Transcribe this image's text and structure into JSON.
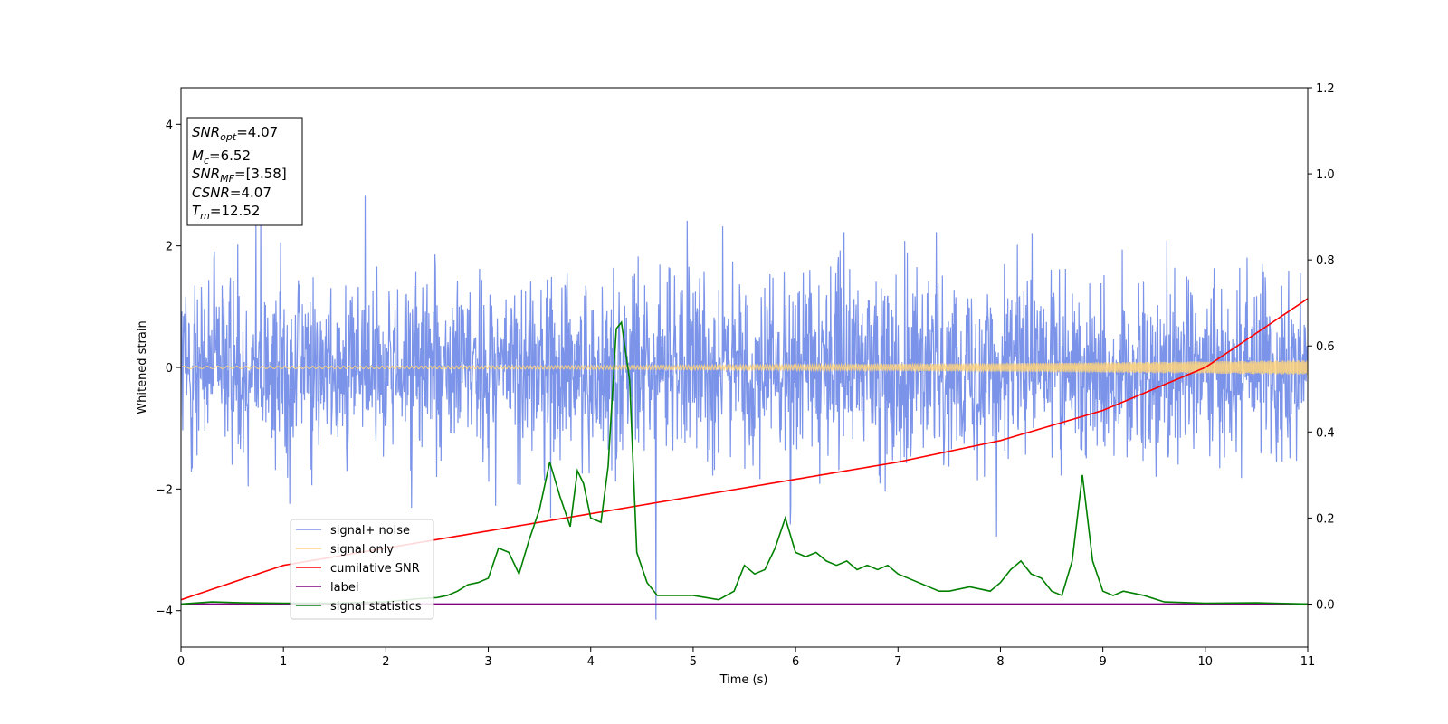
{
  "chart_data": {
    "type": "line",
    "xlabel": "Time (s)",
    "ylabel": "Whitened strain",
    "xlim": [
      0,
      11
    ],
    "ylim": [
      -4.6,
      4.6
    ],
    "y2lim": [
      -0.1,
      1.2
    ],
    "x_ticks": [
      "0",
      "1",
      "2",
      "3",
      "4",
      "5",
      "6",
      "7",
      "8",
      "9",
      "10",
      "11"
    ],
    "y_ticks": [
      "4",
      "2",
      "0",
      "−2",
      "−4"
    ],
    "y2_ticks": [
      "1.2",
      "1.0",
      "0.8",
      "0.6",
      "0.4",
      "0.2",
      "0.0"
    ],
    "grid": false,
    "legend_position": "lower-left",
    "info_box": {
      "snr_opt": {
        "main": "SNR",
        "sub": "opt",
        "value": "=4.07"
      },
      "mc": {
        "main": "M",
        "sub": "c",
        "value": "=6.52"
      },
      "snr_mf": {
        "main": "SNR",
        "sub": "MF",
        "value": "=[3.58]"
      },
      "csnr": {
        "main": "CSNR",
        "value": "=4.07"
      },
      "tm": {
        "main": "T",
        "sub": "m",
        "value": "=12.52"
      }
    },
    "series": [
      {
        "name": "signal+ noise",
        "color": "#7b93e8",
        "axis": "left",
        "description_values": {
          "typical_range": [
            -2.2,
            2.2
          ],
          "max_peak": 4.15,
          "min_peak": -4.15
        }
      },
      {
        "name": "signal only",
        "color": "#ffd37a",
        "axis": "left",
        "envelope_start": 0.02,
        "envelope_end": 0.12
      },
      {
        "name": "cumilative SNR",
        "color": "#ff0000",
        "axis": "right",
        "x": [
          0,
          1,
          2,
          3,
          4,
          5,
          6,
          7,
          8,
          9,
          10,
          11
        ],
        "values": [
          0.01,
          0.09,
          0.13,
          0.17,
          0.21,
          0.25,
          0.29,
          0.33,
          0.38,
          0.45,
          0.55,
          0.71
        ]
      },
      {
        "name": "label",
        "color": "#800080",
        "axis": "right",
        "x": [
          0,
          11
        ],
        "values": [
          0.0,
          0.0
        ]
      },
      {
        "name": "signal statistics",
        "color": "#008000",
        "axis": "right",
        "x": [
          0,
          0.3,
          0.6,
          1.0,
          1.5,
          2.0,
          2.3,
          2.5,
          2.6,
          2.7,
          2.8,
          2.9,
          3.0,
          3.1,
          3.2,
          3.3,
          3.4,
          3.5,
          3.6,
          3.7,
          3.8,
          3.87,
          3.93,
          4.0,
          4.1,
          4.17,
          4.25,
          4.3,
          4.38,
          4.45,
          4.55,
          4.65,
          5.0,
          5.25,
          5.4,
          5.5,
          5.6,
          5.7,
          5.8,
          5.9,
          6.0,
          6.1,
          6.2,
          6.3,
          6.4,
          6.5,
          6.6,
          6.7,
          6.8,
          6.9,
          7.0,
          7.1,
          7.2,
          7.3,
          7.4,
          7.5,
          7.7,
          7.9,
          8.0,
          8.1,
          8.2,
          8.3,
          8.4,
          8.5,
          8.6,
          8.7,
          8.8,
          8.9,
          9.0,
          9.1,
          9.2,
          9.4,
          9.6,
          10.0,
          10.5,
          11.0
        ],
        "values": [
          0.0,
          0.005,
          0.003,
          0.002,
          0.002,
          0.005,
          0.012,
          0.015,
          0.02,
          0.03,
          0.045,
          0.05,
          0.06,
          0.13,
          0.12,
          0.07,
          0.15,
          0.22,
          0.33,
          0.25,
          0.18,
          0.31,
          0.28,
          0.2,
          0.19,
          0.32,
          0.64,
          0.655,
          0.52,
          0.12,
          0.05,
          0.02,
          0.02,
          0.01,
          0.03,
          0.09,
          0.07,
          0.08,
          0.13,
          0.2,
          0.12,
          0.11,
          0.12,
          0.1,
          0.09,
          0.1,
          0.08,
          0.09,
          0.08,
          0.09,
          0.07,
          0.06,
          0.05,
          0.04,
          0.03,
          0.03,
          0.04,
          0.03,
          0.05,
          0.08,
          0.1,
          0.07,
          0.06,
          0.03,
          0.02,
          0.1,
          0.3,
          0.1,
          0.03,
          0.02,
          0.03,
          0.02,
          0.005,
          0.002,
          0.003,
          0.0
        ]
      }
    ]
  }
}
